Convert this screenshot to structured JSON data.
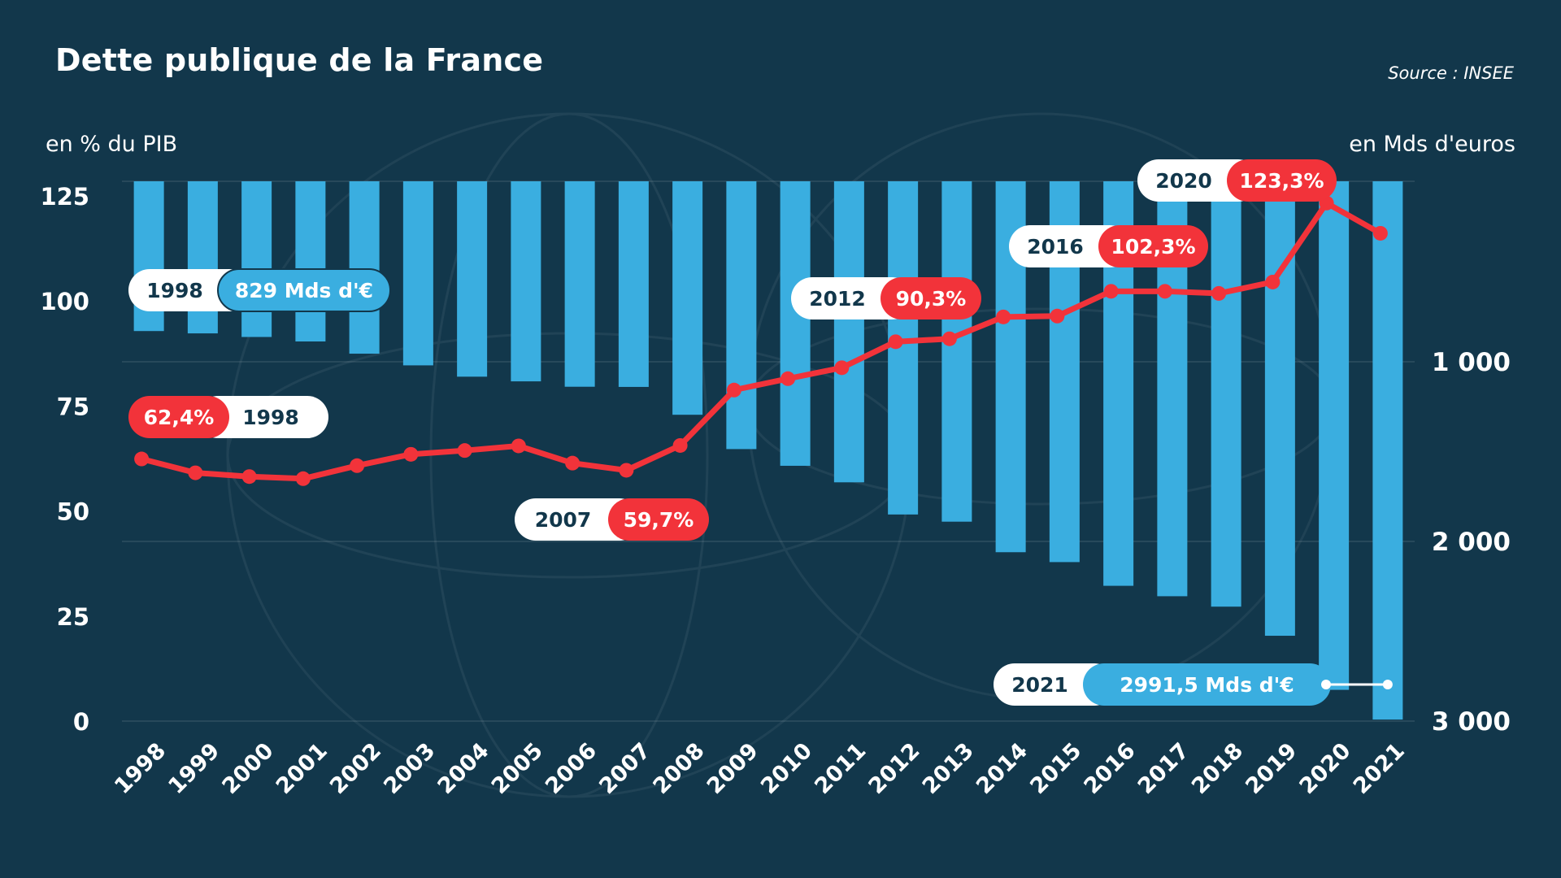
{
  "header": {
    "title": "Dette publique de la France",
    "source": "Source : INSEE",
    "left_axis_unit": "en % du PIB",
    "right_axis_unit": "en Mds d'euros"
  },
  "colors": {
    "background": "#12374b",
    "bars": "#3aaee0",
    "line": "#f2333a",
    "text": "#ffffff",
    "label_dark": "#12374b"
  },
  "chart_data": {
    "type": "bar",
    "title": "Dette publique de la France",
    "categories": [
      "1998",
      "1999",
      "2000",
      "2001",
      "2002",
      "2003",
      "2004",
      "2005",
      "2006",
      "2007",
      "2008",
      "2009",
      "2010",
      "2011",
      "2012",
      "2013",
      "2014",
      "2015",
      "2016",
      "2017",
      "2018",
      "2019",
      "2020",
      "2021"
    ],
    "series": [
      {
        "type": "bar",
        "axis": "right",
        "values": [
          829,
          842,
          862,
          887,
          955,
          1020,
          1083,
          1109,
          1139,
          1140,
          1295,
          1486,
          1579,
          1671,
          1850,
          1890,
          2060,
          2115,
          2247,
          2305,
          2363,
          2525,
          2826,
          2991.5
        ]
      },
      {
        "type": "line",
        "axis": "left",
        "values": [
          62.4,
          59.1,
          58.2,
          57.7,
          60.8,
          63.5,
          64.4,
          65.5,
          61.4,
          59.7,
          65.6,
          78.8,
          81.5,
          84.1,
          90.3,
          91.0,
          96.2,
          96.4,
          102.3,
          102.3,
          101.8,
          104.5,
          123.3,
          116.1
        ]
      }
    ],
    "y_left": {
      "ylim": [
        0,
        125
      ],
      "ticks": [
        "0",
        "25",
        "50",
        "75",
        "100",
        "125"
      ]
    },
    "y_right": {
      "ylim": [
        0,
        3000
      ],
      "inverted": true,
      "ticks": [
        "1 000",
        "2 000",
        "3 000"
      ]
    },
    "grid": true,
    "annotations": [
      {
        "year": "1998",
        "value": "829 Mds d'€",
        "series": "bar"
      },
      {
        "year": "1998",
        "value": "62,4%",
        "series": "line"
      },
      {
        "year": "2007",
        "value": "59,7%",
        "series": "line"
      },
      {
        "year": "2012",
        "value": "90,3%",
        "series": "line"
      },
      {
        "year": "2016",
        "value": "102,3%",
        "series": "line"
      },
      {
        "year": "2020",
        "value": "123,3%",
        "series": "line"
      },
      {
        "year": "2021",
        "value": "2991,5 Mds d'€",
        "series": "bar"
      }
    ]
  }
}
